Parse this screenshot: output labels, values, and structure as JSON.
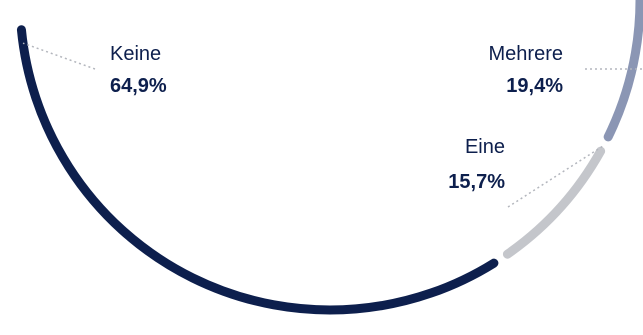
{
  "chart_data": {
    "type": "pie",
    "style": "arc",
    "slices": [
      {
        "label": "Keine",
        "value": 64.9,
        "value_text": "64,9%",
        "color": "#0d1f4d"
      },
      {
        "label": "Eine",
        "value": 15.7,
        "value_text": "15,7%",
        "color": "#c4c6cb"
      },
      {
        "label": "Mehrere",
        "value": 19.4,
        "value_text": "19,4%",
        "color": "#8b96b4"
      }
    ],
    "leader_color": "#b3b6bd"
  }
}
